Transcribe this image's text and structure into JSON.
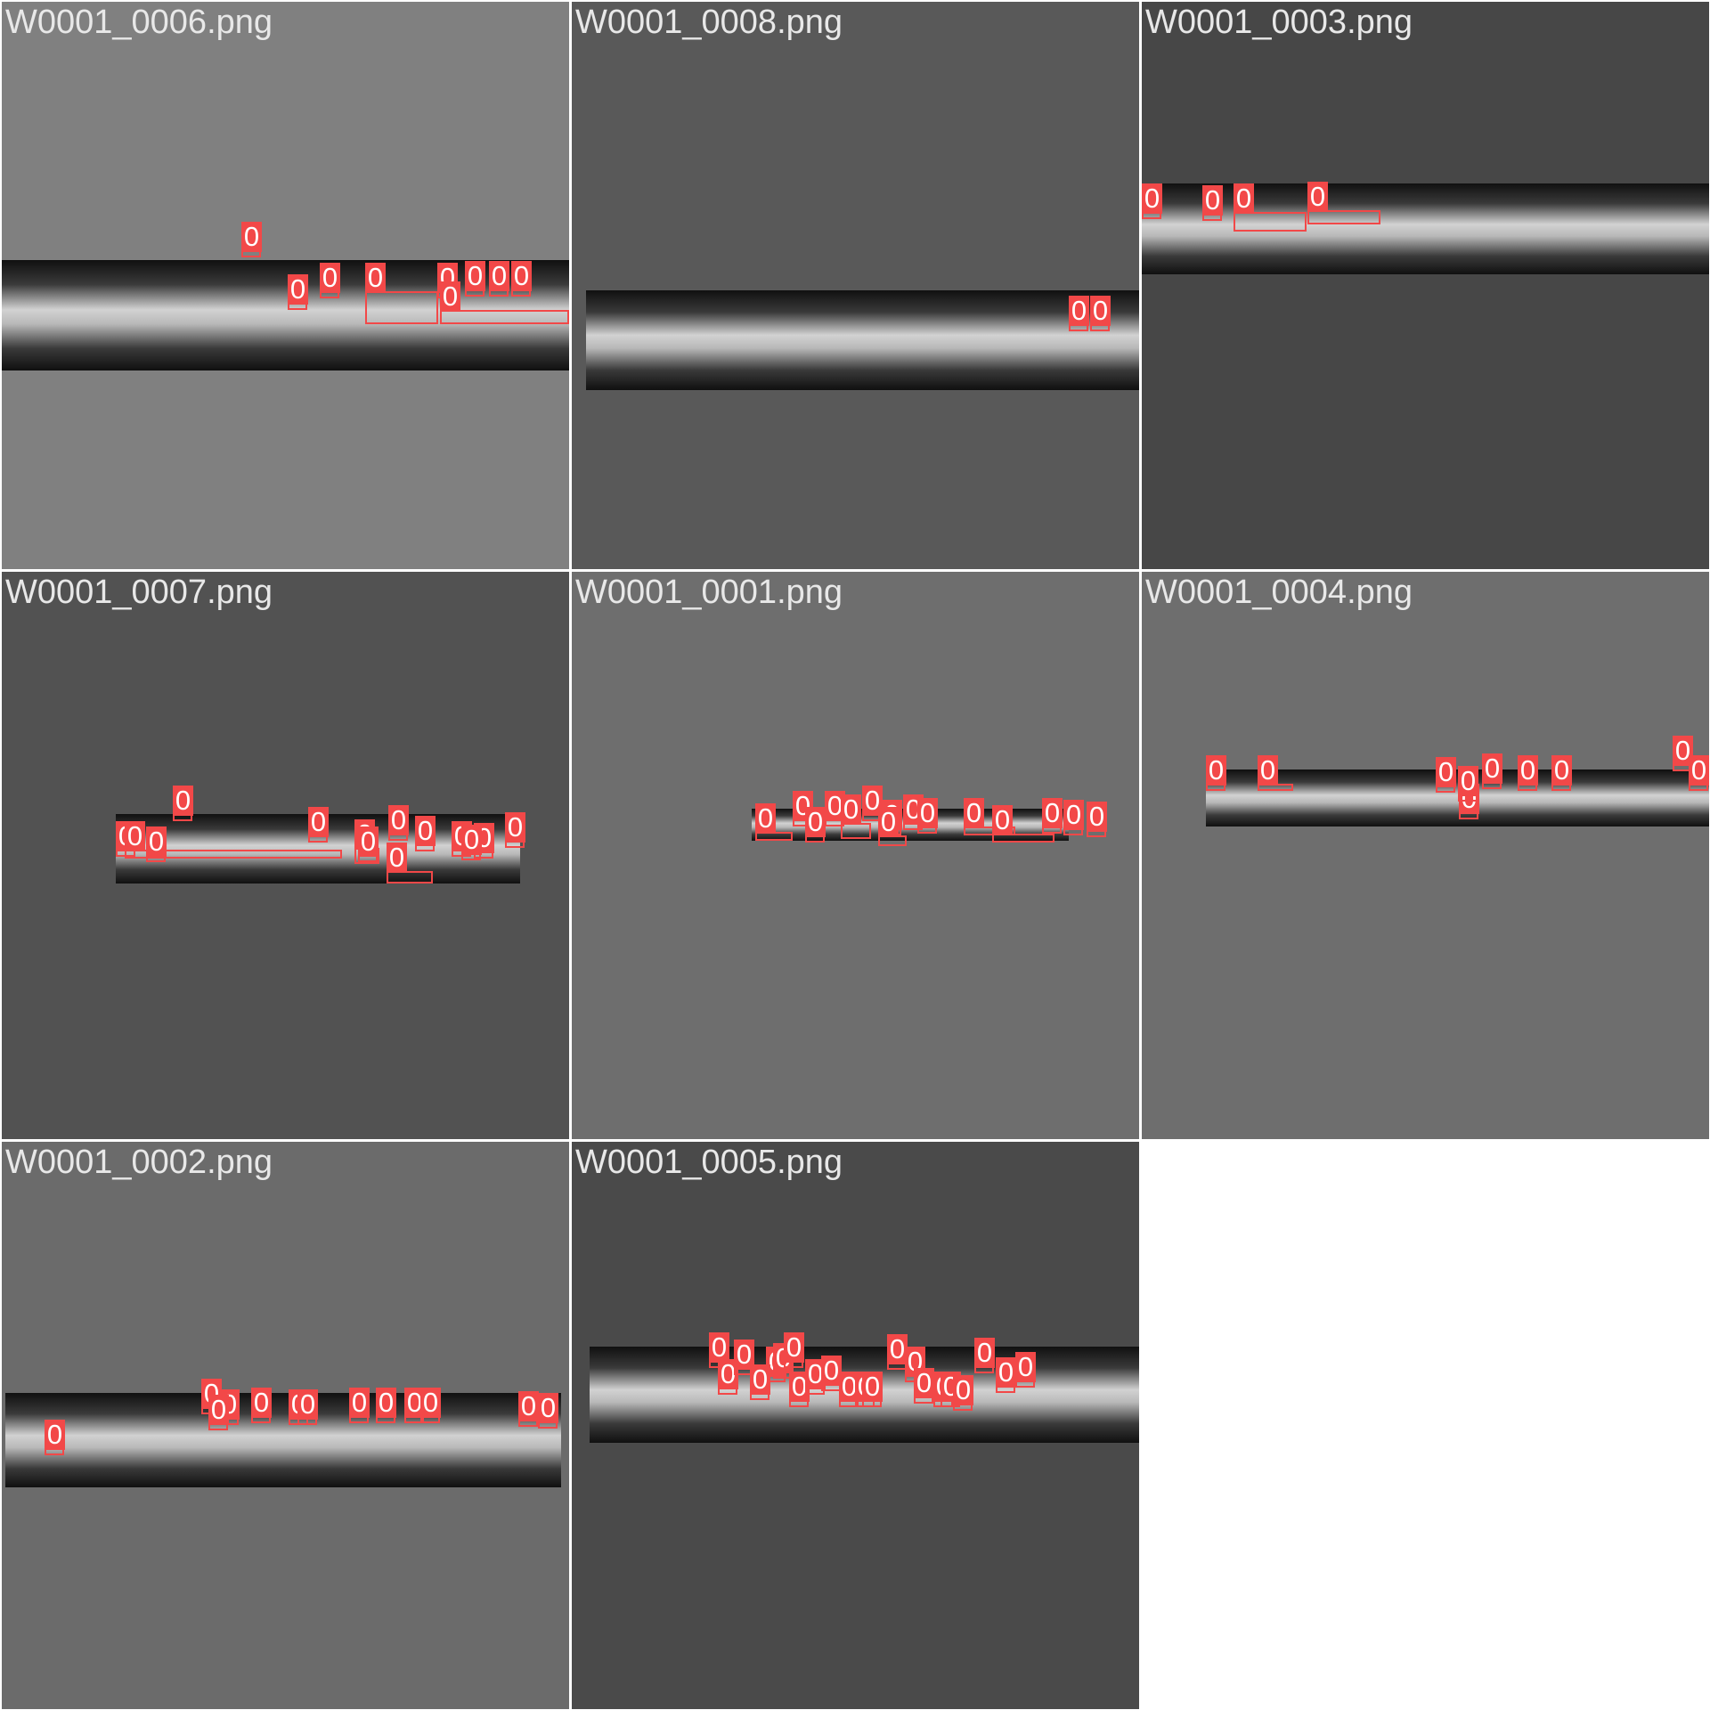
{
  "colors": {
    "page_background": "#ffffff",
    "tile_divider": "#ffffff",
    "title_text": "#e8e8e8",
    "box_color": "#f24848",
    "label_text": "#ffffff",
    "strip_dark": "#101010",
    "strip_light": "#d2d2d2"
  },
  "tiles": [
    {
      "title": "W0001_0006.png",
      "background": "#808080",
      "label_class": "0",
      "detection_count": 9
    },
    {
      "title": "W0001_0008.png",
      "background": "#595959",
      "label_class": "0",
      "detection_count": 2
    },
    {
      "title": "W0001_0003.png",
      "background": "#474747",
      "label_class": "0",
      "detection_count": 4
    },
    {
      "title": "W0001_0007.png",
      "background": "#525252",
      "label_class": "0",
      "detection_count": 14
    },
    {
      "title": "W0001_0001.png",
      "background": "#6e6e6e",
      "label_class": "0",
      "detection_count": 15
    },
    {
      "title": "W0001_0004.png",
      "background": "#6e6e6e",
      "label_class": "0",
      "detection_count": 10
    },
    {
      "title": "W0001_0002.png",
      "background": "#6b6b6b",
      "label_class": "0",
      "detection_count": 13
    },
    {
      "title": "W0001_0005.png",
      "background": "#4a4a4a",
      "label_class": "0",
      "detection_count": 22
    }
  ]
}
